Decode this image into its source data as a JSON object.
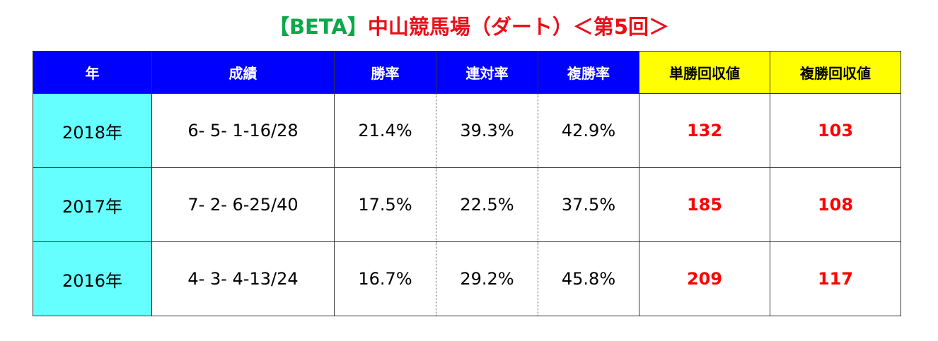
{
  "title": {
    "beta": "【BETA】",
    "main": "中山競馬場（ダート）＜第5回＞"
  },
  "table": {
    "headers": [
      "年",
      "成績",
      "勝率",
      "連対率",
      "複勝率",
      "単勝回収値",
      "複勝回収値"
    ],
    "rows": [
      {
        "year": "2018年",
        "record": "6- 5- 1-16/28",
        "win_rate": "21.4%",
        "top2_rate": "39.3%",
        "top3_rate": "42.9%",
        "win_return": "132",
        "place_return": "103"
      },
      {
        "year": "2017年",
        "record": "7- 2- 6-25/40",
        "win_rate": "17.5%",
        "top2_rate": "22.5%",
        "top3_rate": "37.5%",
        "win_return": "185",
        "place_return": "108"
      },
      {
        "year": "2016年",
        "record": "4- 3- 4-13/24",
        "win_rate": "16.7%",
        "top2_rate": "29.2%",
        "top3_rate": "45.8%",
        "win_return": "209",
        "place_return": "117"
      }
    ]
  },
  "colors": {
    "header_blue": "#0000ff",
    "header_yellow": "#ffff00",
    "year_cell": "#66ffff",
    "return_text": "#ff0000",
    "title_beta": "#0aa84a",
    "title_main": "#e8101a"
  }
}
